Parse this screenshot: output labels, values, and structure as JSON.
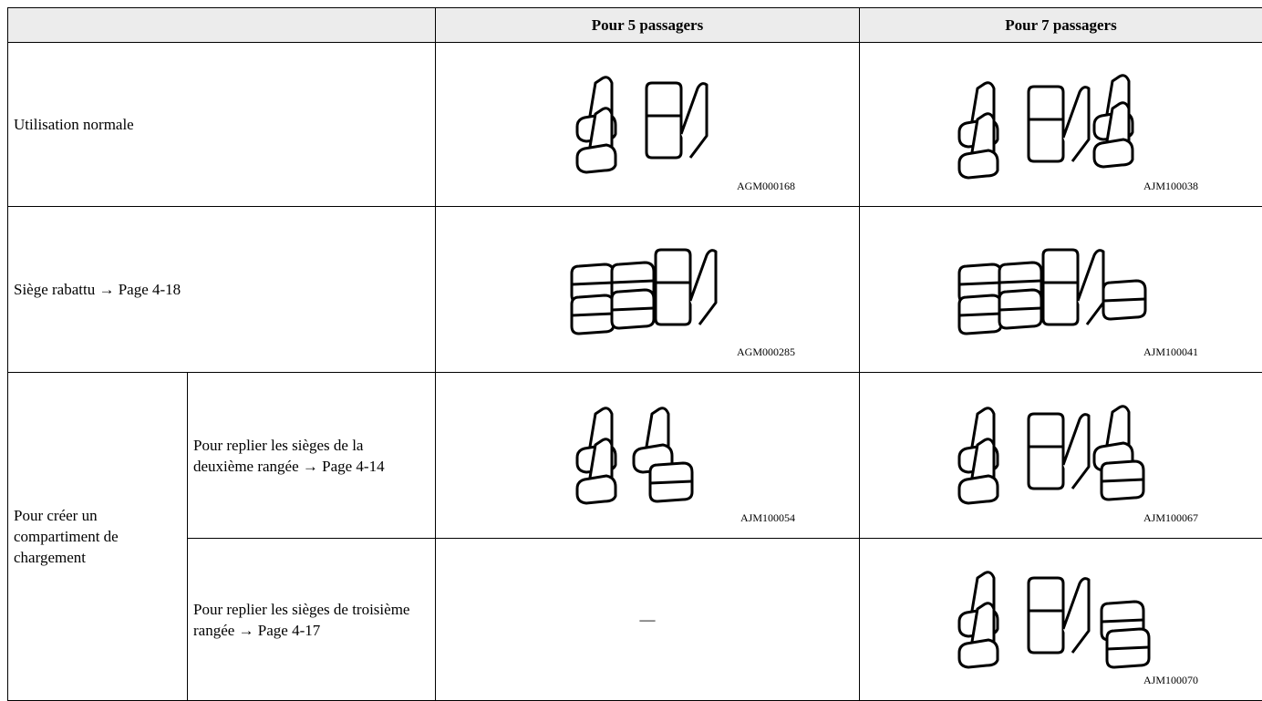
{
  "table": {
    "header": {
      "five": "Pour 5 passagers",
      "seven": "Pour 7 passagers"
    },
    "rows": [
      {
        "label": "Utilisation normale",
        "five": {
          "code": "AGM000168"
        },
        "seven": {
          "code": "AJM100038"
        }
      },
      {
        "label": "Siège rabattu → Page 4-18",
        "five": {
          "code": "AGM000285"
        },
        "seven": {
          "code": "AJM100041"
        }
      },
      {
        "group": "Pour créer un compartiment de chargement",
        "label": "Pour replier les sièges de la deuxième rangée → Page 4-14",
        "five": {
          "code": "AJM100054"
        },
        "seven": {
          "code": "AJM100067"
        }
      },
      {
        "label": "Pour replier les sièges de troisième rangée → Page 4-17",
        "five": {
          "text": "—"
        },
        "seven": {
          "code": "AJM100070"
        }
      }
    ]
  }
}
